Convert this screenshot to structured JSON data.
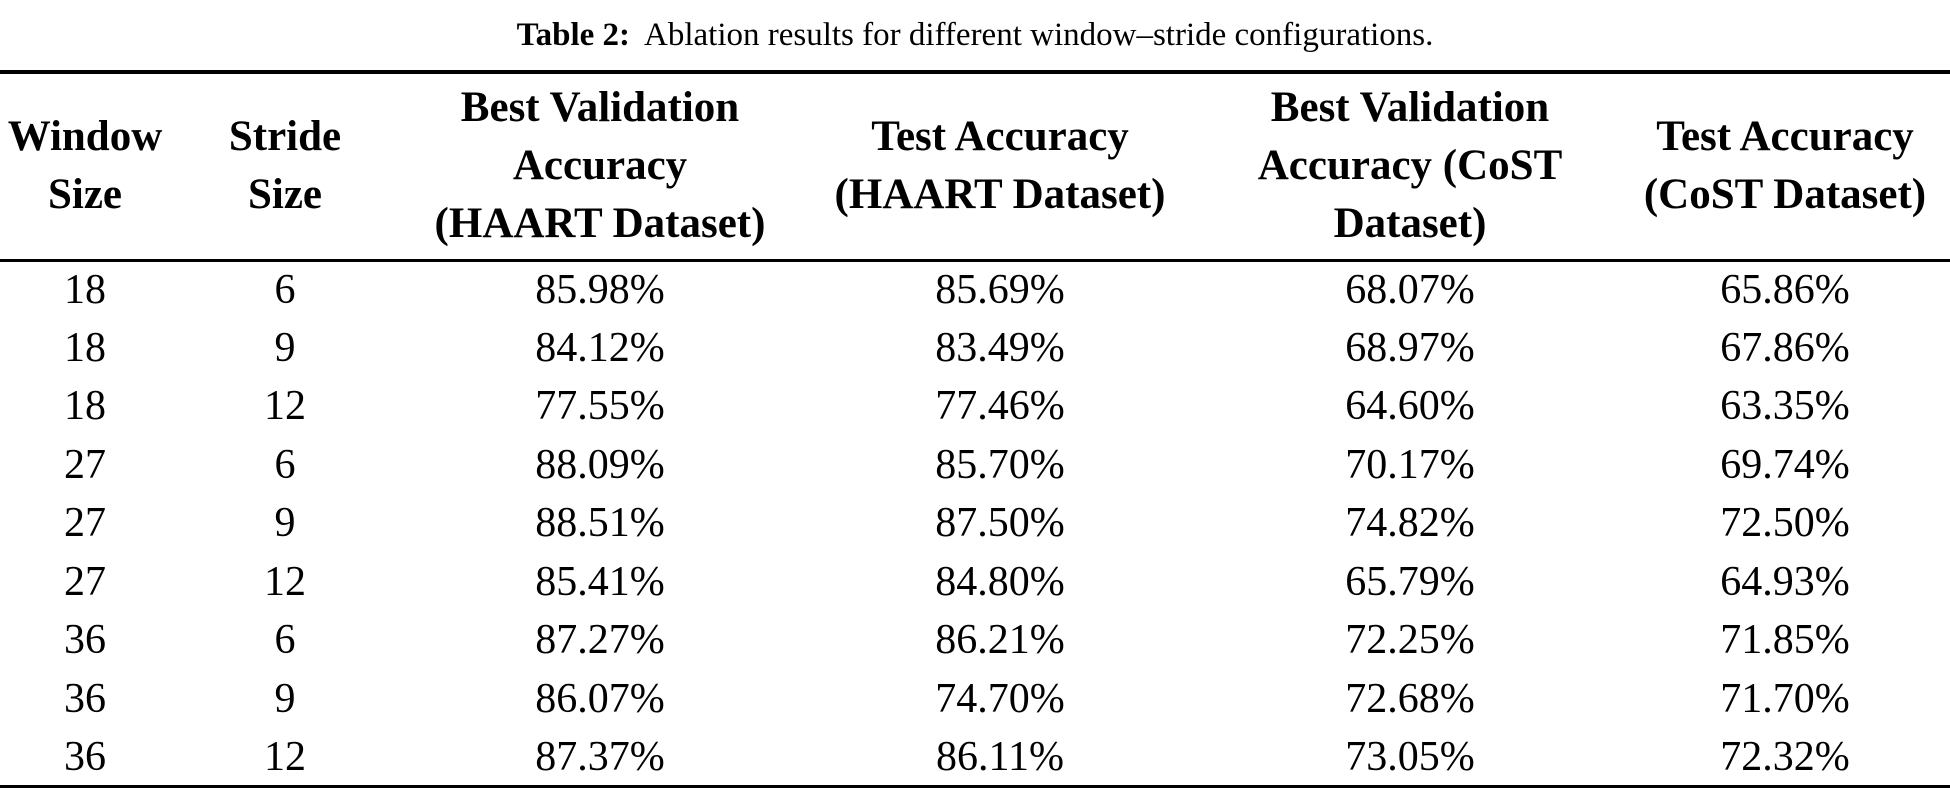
{
  "caption": {
    "label": "Table 2:",
    "text": "Ablation results for different window–stride configurations."
  },
  "colors": {
    "text": "#000000",
    "background": "#ffffff",
    "rule": "#000000"
  },
  "chart_data": {
    "type": "table",
    "title": "Table 2: Ablation results for different window–stride configurations.",
    "columns": [
      {
        "id": "window-size",
        "label": "Window\nSize"
      },
      {
        "id": "stride-size",
        "label": "Stride\nSize"
      },
      {
        "id": "best-val-haart",
        "label": "Best Validation\nAccuracy\n(HAART Dataset)"
      },
      {
        "id": "test-haart",
        "label": "Test Accuracy\n(HAART Dataset)"
      },
      {
        "id": "best-val-cost",
        "label": "Best Validation\nAccuracy (CoST\nDataset)"
      },
      {
        "id": "test-cost",
        "label": "Test Accuracy\n(CoST Dataset)"
      }
    ],
    "rows": [
      [
        "18",
        "6",
        "85.98%",
        "85.69%",
        "68.07%",
        "65.86%"
      ],
      [
        "18",
        "9",
        "84.12%",
        "83.49%",
        "68.97%",
        "67.86%"
      ],
      [
        "18",
        "12",
        "77.55%",
        "77.46%",
        "64.60%",
        "63.35%"
      ],
      [
        "27",
        "6",
        "88.09%",
        "85.70%",
        "70.17%",
        "69.74%"
      ],
      [
        "27",
        "9",
        "88.51%",
        "87.50%",
        "74.82%",
        "72.50%"
      ],
      [
        "27",
        "12",
        "85.41%",
        "84.80%",
        "65.79%",
        "64.93%"
      ],
      [
        "36",
        "6",
        "87.27%",
        "86.21%",
        "72.25%",
        "71.85%"
      ],
      [
        "36",
        "9",
        "86.07%",
        "74.70%",
        "72.68%",
        "71.70%"
      ],
      [
        "36",
        "12",
        "87.37%",
        "86.11%",
        "73.05%",
        "72.32%"
      ]
    ]
  }
}
